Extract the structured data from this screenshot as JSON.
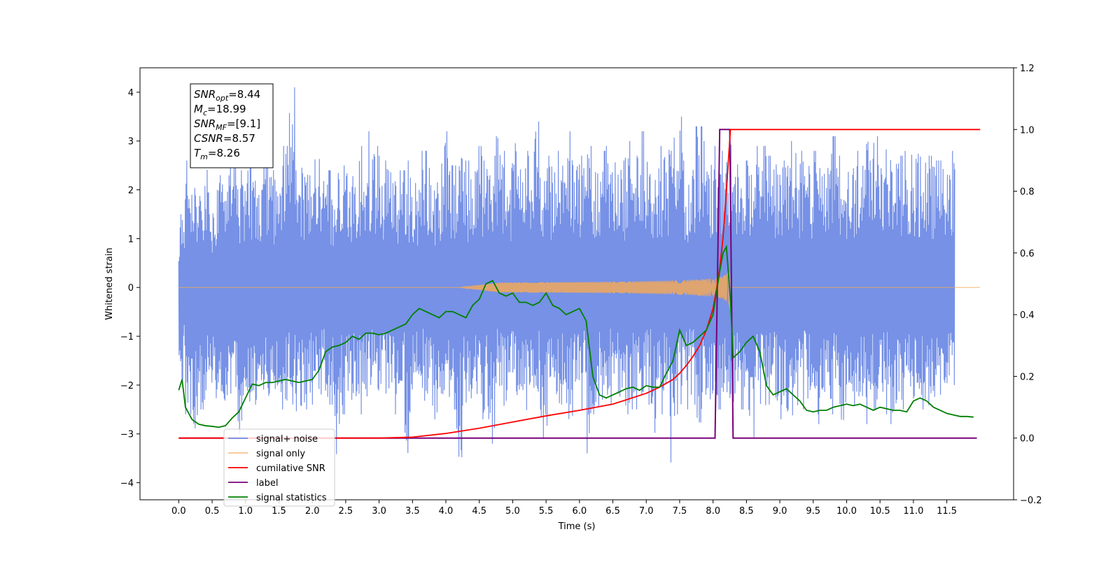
{
  "chart_data": {
    "type": "line",
    "xlabel": "Time (s)",
    "ylabel": "Whitened strain",
    "xlim": [
      -0.58,
      12.5
    ],
    "ylim": [
      -4.35,
      4.5
    ],
    "y2lim": [
      -0.2,
      1.2
    ],
    "x_ticks": [
      0.0,
      0.5,
      1.0,
      1.5,
      2.0,
      2.5,
      3.0,
      3.5,
      4.0,
      4.5,
      5.0,
      5.5,
      6.0,
      6.5,
      7.0,
      7.5,
      8.0,
      8.5,
      9.0,
      9.5,
      10.0,
      10.5,
      11.0,
      11.5
    ],
    "x_tick_labels": [
      "0.0",
      "0.5",
      "1.0",
      "1.5",
      "2.0",
      "2.5",
      "3.0",
      "3.5",
      "4.0",
      "4.5",
      "5.0",
      "5.5",
      "6.0",
      "6.5",
      "7.0",
      "7.5",
      "8.0",
      "8.5",
      "9.0",
      "9.5",
      "10.0",
      "10.5",
      "11.0",
      "11.5"
    ],
    "y_ticks": [
      -4,
      -3,
      -2,
      -1,
      0,
      1,
      2,
      3,
      4
    ],
    "y_tick_labels": [
      "−4",
      "−3",
      "−2",
      "−1",
      "0",
      "1",
      "2",
      "3",
      "4"
    ],
    "y2_ticks": [
      -0.2,
      0.0,
      0.2,
      0.4,
      0.6,
      0.8,
      1.0,
      1.2
    ],
    "y2_tick_labels": [
      "−0.2",
      "0.0",
      "0.2",
      "0.4",
      "0.6",
      "0.8",
      "1.0",
      "1.2"
    ],
    "grid": false,
    "legend_position": "bottom-left",
    "info_box": {
      "lines": [
        {
          "base": "SNR",
          "sub": "opt",
          "rest": "=8.44"
        },
        {
          "base": "M",
          "sub": "c",
          "rest": "=18.99"
        },
        {
          "base": "SNR",
          "sub": "MF",
          "rest": "=[9.1]"
        },
        {
          "base": "CSNR",
          "sub": "",
          "rest": "=8.57"
        },
        {
          "base": "T",
          "sub": "m",
          "rest": "=8.26"
        }
      ]
    },
    "series": [
      {
        "name": "signal+ noise",
        "axis": "left",
        "color": "#6f8be5",
        "x_range": [
          0.0,
          12.0
        ],
        "band_upper": [
          1.5,
          2.6,
          2.3,
          2.1,
          2.8,
          2.0,
          2.3,
          2.5,
          3.3,
          2.4,
          2.6,
          2.8,
          2.0,
          2.9,
          2.4,
          2.3,
          2.9,
          4.1,
          2.4,
          2.7,
          2.6,
          2.8,
          2.3,
          2.4,
          2.5,
          2.5,
          2.6,
          2.8,
          2.9,
          3.2,
          2.9,
          2.7,
          2.6,
          2.3,
          2.4,
          2.6,
          2.4,
          2.8,
          2.8,
          2.4,
          2.7,
          3.2,
          2.5,
          2.8,
          2.6,
          2.8,
          2.9,
          2.6,
          2.7,
          3.4,
          2.8,
          2.7,
          3.2,
          2.8,
          2.7,
          3.4,
          2.6,
          2.7,
          2.8,
          2.7,
          3.2,
          2.8,
          2.7,
          2.9,
          2.6,
          2.8,
          2.9,
          3.3,
          2.6,
          3.0,
          2.7,
          3.2,
          2.8,
          2.8,
          2.9,
          3.0,
          3.3,
          3.5,
          2.6,
          2.7,
          3.3,
          3.0,
          2.9,
          2.8,
          2.8,
          3.3,
          2.8,
          2.6,
          2.7,
          2.9,
          2.9,
          2.7,
          2.8,
          2.6,
          3.0,
          3.2,
          2.8,
          2.8,
          2.8,
          3.0,
          2.8,
          3.1,
          2.7,
          2.6,
          2.7,
          2.8,
          3.3,
          3.2,
          3.1,
          3.0,
          2.8,
          2.7,
          2.8,
          2.9,
          2.9,
          2.8,
          2.7,
          2.6,
          2.7,
          2.8,
          2.8,
          2.9,
          2.6,
          2.5
        ],
        "band_lower": [
          -1.9,
          -2.6,
          -3.2,
          -2.5,
          -2.3,
          -2.4,
          -2.5,
          -2.6,
          -2.4,
          -3.0,
          -2.5,
          -2.4,
          -2.3,
          -2.6,
          -2.3,
          -2.4,
          -2.5,
          -2.4,
          -2.9,
          -2.5,
          -2.4,
          -2.6,
          -2.4,
          -2.4,
          -3.9,
          -2.6,
          -2.3,
          -2.5,
          -2.6,
          -2.4,
          -2.5,
          -2.5,
          -2.4,
          -2.6,
          -2.4,
          -3.7,
          -2.4,
          -2.3,
          -2.5,
          -2.7,
          -2.3,
          -2.4,
          -2.5,
          -3.7,
          -2.6,
          -2.4,
          -2.5,
          -2.7,
          -3.2,
          -2.4,
          -2.6,
          -2.5,
          -2.4,
          -2.7,
          -2.4,
          -2.5,
          -3.1,
          -2.4,
          -2.5,
          -2.4,
          -2.9,
          -2.4,
          -2.5,
          -3.4,
          -2.6,
          -2.3,
          -2.4,
          -2.5,
          -2.7,
          -2.6,
          -2.5,
          -2.5,
          -2.4,
          -3.2,
          -2.6,
          -2.5,
          -3.8,
          -2.6,
          -2.5,
          -2.4,
          -3.2,
          -2.6,
          -3.0,
          -2.5,
          -2.4,
          -2.6,
          -2.4,
          -2.5,
          -3.7,
          -2.5,
          -2.6,
          -2.4,
          -2.5,
          -2.7,
          -3.0,
          -2.6,
          -2.5,
          -2.4,
          -2.6,
          -2.8,
          -2.5,
          -2.6,
          -3.2,
          -2.5,
          -2.6,
          -2.4,
          -2.8,
          -2.5,
          -2.5,
          -2.6,
          -2.8,
          -2.3,
          -2.5,
          -2.6,
          -2.4,
          -2.5,
          -2.7,
          -2.2,
          -2.1,
          -2.0
        ]
      },
      {
        "name": "signal only",
        "axis": "left",
        "color": "#f2a85a",
        "x_range": [
          0.0,
          12.0
        ],
        "chirp_start": 4.2,
        "peak_time": 8.26,
        "peak_amplitude": 1.1
      },
      {
        "name": "cumilative SNR",
        "axis": "right",
        "color": "#ff0000",
        "x": [
          0.0,
          3.0,
          3.5,
          4.0,
          4.5,
          5.0,
          5.5,
          6.0,
          6.5,
          7.0,
          7.2,
          7.4,
          7.5,
          7.6,
          7.7,
          7.8,
          7.9,
          8.0,
          8.05,
          8.1,
          8.15,
          8.2,
          8.26,
          8.3,
          12.0
        ],
        "y": [
          0.0,
          0.0,
          0.003,
          0.015,
          0.032,
          0.052,
          0.072,
          0.09,
          0.11,
          0.145,
          0.165,
          0.19,
          0.21,
          0.235,
          0.265,
          0.3,
          0.35,
          0.42,
          0.48,
          0.55,
          0.65,
          0.8,
          1.0,
          1.0,
          1.0
        ]
      },
      {
        "name": "label",
        "axis": "right",
        "color": "#7a007a",
        "x": [
          0.0,
          8.03,
          8.1,
          8.16,
          8.25,
          8.3,
          8.33,
          11.95
        ],
        "y": [
          0.0,
          0.0,
          1.0,
          1.0,
          1.0,
          0.0,
          0.0,
          0.0
        ]
      },
      {
        "name": "signal statistics",
        "axis": "right",
        "color": "#008000",
        "x": [
          0.0,
          0.05,
          0.1,
          0.2,
          0.3,
          0.4,
          0.5,
          0.6,
          0.7,
          0.8,
          0.9,
          1.0,
          1.1,
          1.2,
          1.3,
          1.4,
          1.5,
          1.6,
          1.7,
          1.8,
          1.9,
          2.0,
          2.1,
          2.2,
          2.3,
          2.4,
          2.5,
          2.6,
          2.7,
          2.8,
          2.9,
          3.0,
          3.1,
          3.2,
          3.3,
          3.4,
          3.5,
          3.6,
          3.7,
          3.8,
          3.9,
          4.0,
          4.1,
          4.2,
          4.3,
          4.4,
          4.5,
          4.6,
          4.7,
          4.8,
          4.9,
          5.0,
          5.1,
          5.2,
          5.3,
          5.4,
          5.5,
          5.6,
          5.7,
          5.8,
          5.9,
          6.0,
          6.1,
          6.2,
          6.3,
          6.4,
          6.5,
          6.6,
          6.7,
          6.8,
          6.9,
          7.0,
          7.1,
          7.2,
          7.3,
          7.4,
          7.5,
          7.6,
          7.7,
          7.8,
          7.9,
          8.0,
          8.1,
          8.15,
          8.2,
          8.26,
          8.3,
          8.35,
          8.4,
          8.5,
          8.6,
          8.7,
          8.8,
          8.9,
          9.0,
          9.1,
          9.2,
          9.3,
          9.4,
          9.5,
          9.6,
          9.7,
          9.8,
          9.9,
          10.0,
          10.1,
          10.2,
          10.3,
          10.4,
          10.5,
          10.6,
          10.7,
          10.8,
          10.9,
          11.0,
          11.1,
          11.2,
          11.3,
          11.4,
          11.5,
          11.6,
          11.7,
          11.8,
          11.9
        ],
        "y": [
          0.155,
          0.19,
          0.1,
          0.06,
          0.045,
          0.04,
          0.038,
          0.035,
          0.04,
          0.065,
          0.085,
          0.13,
          0.175,
          0.17,
          0.18,
          0.18,
          0.185,
          0.19,
          0.185,
          0.18,
          0.185,
          0.19,
          0.22,
          0.28,
          0.295,
          0.3,
          0.31,
          0.33,
          0.32,
          0.34,
          0.34,
          0.335,
          0.34,
          0.35,
          0.36,
          0.37,
          0.4,
          0.42,
          0.41,
          0.4,
          0.39,
          0.41,
          0.41,
          0.4,
          0.39,
          0.43,
          0.45,
          0.5,
          0.51,
          0.47,
          0.46,
          0.47,
          0.44,
          0.44,
          0.43,
          0.44,
          0.47,
          0.43,
          0.42,
          0.4,
          0.41,
          0.42,
          0.38,
          0.2,
          0.14,
          0.13,
          0.14,
          0.15,
          0.16,
          0.165,
          0.155,
          0.17,
          0.165,
          0.165,
          0.21,
          0.25,
          0.35,
          0.3,
          0.31,
          0.33,
          0.35,
          0.4,
          0.54,
          0.6,
          0.62,
          0.45,
          0.26,
          0.27,
          0.28,
          0.31,
          0.33,
          0.28,
          0.17,
          0.14,
          0.15,
          0.16,
          0.14,
          0.12,
          0.09,
          0.085,
          0.09,
          0.09,
          0.1,
          0.105,
          0.11,
          0.105,
          0.11,
          0.1,
          0.09,
          0.1,
          0.095,
          0.09,
          0.09,
          0.085,
          0.12,
          0.13,
          0.12,
          0.1,
          0.09,
          0.08,
          0.075,
          0.07,
          0.07,
          0.068
        ]
      }
    ]
  }
}
